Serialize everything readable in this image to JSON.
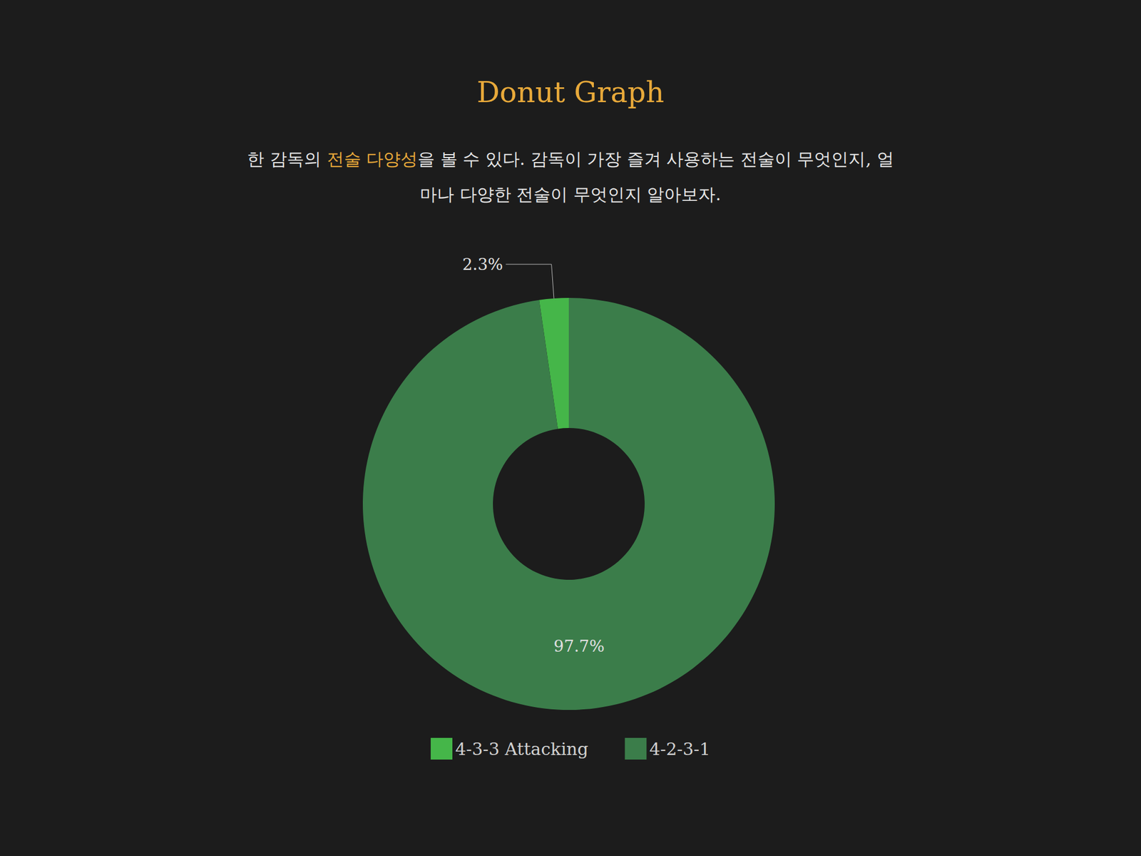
{
  "chart_data": {
    "type": "pie",
    "title": "Donut Graph",
    "subtitle": [
      "한 감독의 ",
      "전술 다양성",
      "을 볼 수 있다. 감독이 가장 즐겨 사용하는 전술이 무엇인지, 얼마나 다양한 전술이 무엇인지 알아보자."
    ],
    "categories": [
      "4-3-3 Attacking",
      "4-2-3-1"
    ],
    "values": [
      2.3,
      97.7
    ],
    "value_labels": [
      "2.3%",
      "97.7%"
    ],
    "colors": [
      "#45b649",
      "#3b7d4a"
    ],
    "data_labels": true,
    "legend": "bottom"
  }
}
